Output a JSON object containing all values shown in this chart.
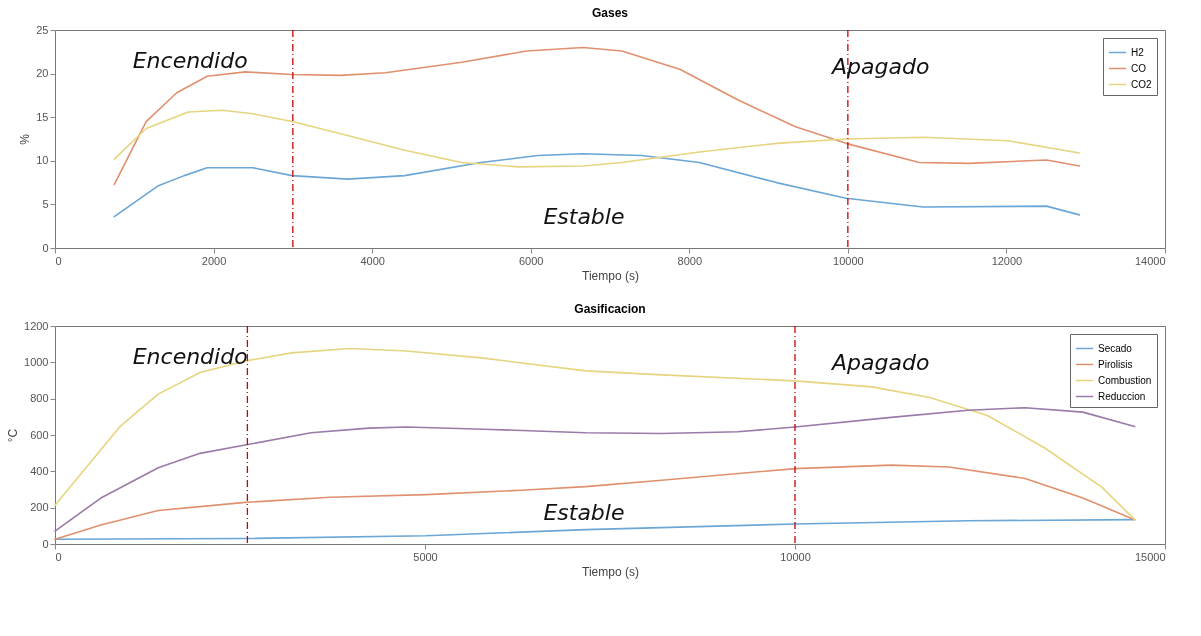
{
  "chart_data": [
    {
      "type": "line",
      "title": "Gases",
      "xlabel": "Tiempo (s)",
      "ylabel": "%",
      "xlim": [
        0,
        14000
      ],
      "xticks": [
        0,
        2000,
        4000,
        6000,
        8000,
        10000,
        12000,
        14000
      ],
      "ylim": [
        0,
        25
      ],
      "yticks": [
        0,
        5,
        10,
        15,
        20,
        25
      ],
      "grid": false,
      "legend": "top right",
      "marker": "none",
      "line_style": "solid",
      "series": [
        {
          "name": "H2",
          "color": "#6aa6d6",
          "x": [
            748,
            1295,
            1630,
            1920,
            2494,
            2990,
            3690,
            4410,
            5370,
            6090,
            6660,
            7397,
            8127,
            9100,
            9976,
            10950,
            12505,
            12920
          ],
          "values": [
            3.6,
            7.1,
            8.3,
            9.2,
            9.2,
            8.3,
            7.9,
            8.3,
            9.8,
            10.6,
            10.8,
            10.6,
            9.8,
            7.5,
            5.7,
            4.7,
            4.8,
            3.8
          ]
        },
        {
          "name": "CO",
          "color": "#e0906e",
          "x": [
            748,
            1150,
            1535,
            1920,
            2400,
            2990,
            3600,
            4170,
            5130,
            5950,
            6660,
            7150,
            7880,
            8610,
            9340,
            9976,
            10900,
            11530,
            12505,
            12920
          ],
          "values": [
            7.3,
            14.5,
            17.8,
            19.7,
            20.2,
            19.9,
            19.8,
            20.1,
            21.3,
            22.6,
            23.0,
            22.6,
            20.5,
            17.0,
            13.9,
            12.0,
            9.8,
            9.7,
            10.1,
            9.4
          ]
        },
        {
          "name": "CO2",
          "color": "#e6d47e",
          "x": [
            748,
            1150,
            1680,
            2110,
            2494,
            2990,
            3690,
            4410,
            5130,
            5850,
            6660,
            7150,
            8127,
            9100,
            9976,
            10950,
            12020,
            12920
          ],
          "values": [
            10.2,
            13.7,
            15.6,
            15.8,
            15.4,
            14.5,
            12.9,
            11.2,
            9.8,
            9.3,
            9.4,
            9.8,
            11.0,
            12.0,
            12.5,
            12.7,
            12.3,
            10.9
          ]
        }
      ],
      "ref_lines": [
        {
          "axis": "x",
          "value": 3000,
          "color": "#cc0000",
          "line_style": "dashed"
        },
        {
          "axis": "x",
          "value": 10000,
          "color": "#cc0000",
          "line_style": "dashed"
        }
      ],
      "annotations": [
        "Encendido",
        "Estable",
        "Apagado"
      ]
    },
    {
      "type": "line",
      "title": "Gasificacion",
      "xlabel": "Tiempo (s)",
      "ylabel": "°C",
      "xlim": [
        0,
        15000
      ],
      "xticks": [
        0,
        5000,
        10000,
        15000
      ],
      "ylim": [
        0,
        1200
      ],
      "yticks": [
        0,
        200,
        400,
        600,
        800,
        1000,
        1200
      ],
      "grid": false,
      "legend": "top right",
      "marker": "none",
      "line_style": "solid",
      "series": [
        {
          "name": "Secado",
          "color": "#6aa6d6",
          "x": [
            0,
            2570,
            5010,
            7170,
            10000,
            12340,
            14590
          ],
          "values": [
            26,
            30,
            45,
            79,
            110,
            128,
            134
          ]
        },
        {
          "name": "Pirolisis",
          "color": "#e0906e",
          "x": [
            0,
            620,
            1395,
            2570,
            3720,
            5010,
            6300,
            7170,
            8200,
            10000,
            11300,
            12080,
            13110,
            13890,
            14590
          ],
          "values": [
            26,
            105,
            184,
            229,
            257,
            272,
            296,
            316,
            351,
            415,
            434,
            424,
            361,
            253,
            134
          ]
        },
        {
          "name": "Combustion",
          "color": "#e6d47e",
          "x": [
            0,
            360,
            880,
            1395,
            1960,
            2570,
            3200,
            3980,
            4750,
            5790,
            7170,
            8200,
            10000,
            11040,
            11820,
            12600,
            13370,
            14150,
            14590
          ],
          "values": [
            213,
            391,
            647,
            825,
            944,
            1007,
            1052,
            1076,
            1062,
            1023,
            953,
            931,
            898,
            865,
            806,
            707,
            530,
            312,
            134
          ]
        },
        {
          "name": "Reduccion",
          "color": "#9a7aa8",
          "x": [
            0,
            620,
            1395,
            1960,
            2570,
            3460,
            4240,
            4750,
            5790,
            7170,
            8200,
            9230,
            10000,
            11300,
            12340,
            13110,
            13890,
            14590
          ],
          "values": [
            71,
            253,
            420,
            499,
            545,
            612,
            638,
            644,
            632,
            612,
            608,
            618,
            644,
            697,
            736,
            750,
            726,
            647
          ]
        }
      ],
      "ref_lines": [
        {
          "axis": "x",
          "value": 2600,
          "color": "#cc0000",
          "line_style": "dashed"
        },
        {
          "axis": "x",
          "value": 10000,
          "color": "#cc0000",
          "line_style": "dashed"
        }
      ],
      "annotations": [
        "Encendido",
        "Estable",
        "Apagado"
      ]
    }
  ]
}
